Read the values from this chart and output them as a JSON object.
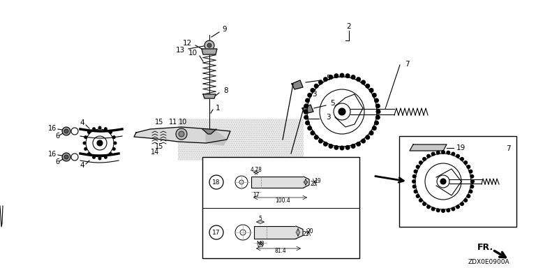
{
  "bg_color": "#ffffff",
  "fig_width": 7.68,
  "fig_height": 3.84,
  "dpi": 100,
  "title_code": "ZDX0E0900A"
}
